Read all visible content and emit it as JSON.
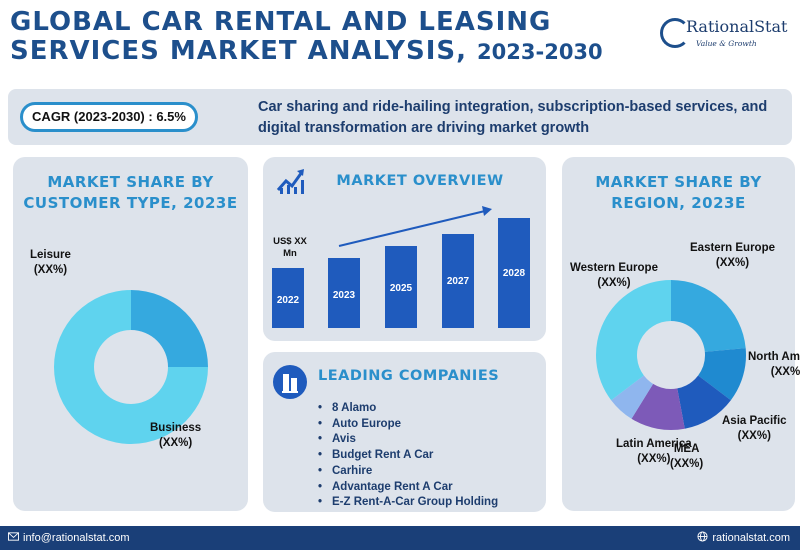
{
  "header": {
    "title_line1": "GLOBAL CAR RENTAL AND LEASING",
    "title_line2": "SERVICES MARKET ANALYSIS,",
    "title_years": "2023-2030",
    "brand": "RationalStat",
    "tagline": "Value & Growth"
  },
  "banner": {
    "cagr": "CAGR (2023-2030) : 6.5%",
    "drivers": "Car sharing and ride-hailing integration, subscription-based services, and digital transformation are driving market growth"
  },
  "colors": {
    "brand_blue": "#1d4f8c",
    "accent": "#2a8fcb",
    "bar": "#1f5bbd",
    "panel": "#dde3eb"
  },
  "chart_data": [
    {
      "type": "pie",
      "title": "MARKET SHARE BY CUSTOMER TYPE, 2023E",
      "categories": [
        "Leisure",
        "Business"
      ],
      "labels": [
        "(XX%)",
        "(XX%)"
      ],
      "values": [
        75,
        25
      ],
      "colors": [
        "#5fd3ee",
        "#35a9df"
      ]
    },
    {
      "type": "bar",
      "title": "MARKET OVERVIEW",
      "unit": "US$ XX Mn",
      "categories": [
        "2022",
        "2023",
        "2025",
        "2027",
        "2028"
      ],
      "values": [
        60,
        70,
        82,
        94,
        110
      ],
      "trend_arrow": true
    },
    {
      "type": "pie",
      "title": "MARKET SHARE BY REGION, 2023E",
      "categories": [
        "Eastern Europe",
        "North America",
        "Asia Pacific",
        "MEA",
        "Latin America",
        "Western Europe"
      ],
      "labels": [
        "(XX%)",
        "(XX%)",
        "(XX%)",
        "(XX%)",
        "(XX%)",
        "(XX%)"
      ],
      "values": [
        20,
        10,
        10,
        10,
        5,
        30
      ],
      "colors": [
        "#35a9df",
        "#1f8ad0",
        "#1f5bbd",
        "#7d5ab8",
        "#8fb6ee",
        "#5fd3ee"
      ]
    }
  ],
  "leading": {
    "title": "LEADING COMPANIES",
    "companies": [
      "8 Alamo",
      "Auto Europe",
      "Avis",
      "Budget Rent A Car",
      "Carhire",
      "Advantage Rent A Car",
      "E-Z Rent-A-Car Group Holding"
    ]
  },
  "footer": {
    "email": "info@rationalstat.com",
    "website": "rationalstat.com"
  }
}
